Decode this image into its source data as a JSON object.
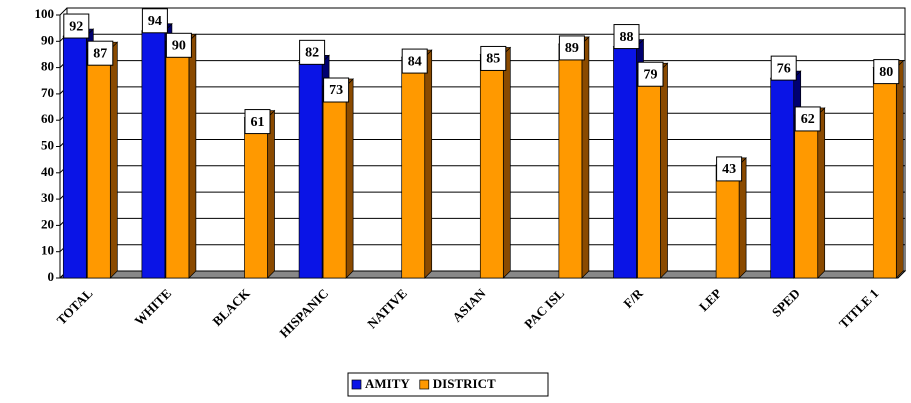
{
  "chart_data": {
    "type": "bar",
    "categories": [
      "TOTAL",
      "WHITE",
      "BLACK",
      "HISPANIC",
      "NATIVE",
      "ASIAN",
      "PAC ISL",
      "F/R",
      "LEP",
      "SPED",
      "TITLE 1"
    ],
    "series": [
      {
        "name": "AMITY",
        "color": "#0a14e6",
        "values": [
          92,
          94,
          null,
          82,
          null,
          null,
          null,
          88,
          null,
          76,
          null
        ]
      },
      {
        "name": "DISTRICT",
        "color": "#ff9900",
        "values": [
          87,
          90,
          61,
          73,
          84,
          85,
          89,
          79,
          43,
          62,
          80
        ]
      }
    ],
    "ylim": [
      0,
      100
    ],
    "yticks": [
      0,
      10,
      20,
      30,
      40,
      50,
      60,
      70,
      80,
      90,
      100
    ],
    "grid": true,
    "legend": "bottom"
  }
}
